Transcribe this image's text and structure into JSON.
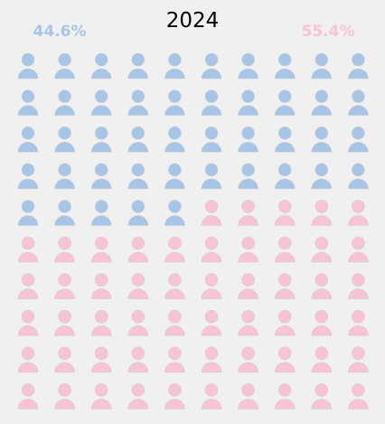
{
  "chart_data": {
    "type": "waffle",
    "title": "2024",
    "grid": {
      "rows": 10,
      "cols": 10
    },
    "series": [
      {
        "label": "44.6%",
        "value": 44.6,
        "count": 45,
        "color": "#a7c5e6"
      },
      {
        "label": "55.4%",
        "value": 55.4,
        "count": 55,
        "color": "#f8c3d3"
      }
    ],
    "icon": "person-icon"
  }
}
